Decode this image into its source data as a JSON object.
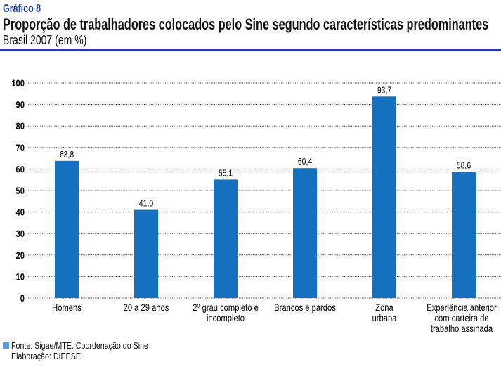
{
  "header": {
    "kicker": "Gráfico 8",
    "title": "Proporção de trabalhadores colocados pelo Sine segundo características predominantes",
    "subtitle": "Brasil 2007 (em %)"
  },
  "footer": {
    "source": "Fonte: Sigae/MTE. Coordenação do Sine",
    "elaboration": "Elaboração: DIEESE"
  },
  "colors": {
    "bar": "#1570c0",
    "accent": "#1f3f9a",
    "legend": "#5b9bd5"
  },
  "chart_data": {
    "type": "bar",
    "title": "Proporção de trabalhadores colocados pelo Sine segundo características predominantes",
    "xlabel": "",
    "ylabel": "",
    "ylim": [
      0,
      100
    ],
    "yticks": [
      "0",
      "10",
      "20",
      "30",
      "40",
      "50",
      "60",
      "70",
      "80",
      "90",
      "100"
    ],
    "grid": true,
    "categories": [
      [
        "Homens"
      ],
      [
        "20 a 29 anos"
      ],
      [
        "2º grau completo e",
        "incompleto"
      ],
      [
        "Brancos e pardos"
      ],
      [
        "Zona",
        "urbana"
      ],
      [
        "Experiência anterior",
        "com carteira de",
        "trabalho assinada"
      ]
    ],
    "values": [
      63.8,
      41.0,
      55.1,
      60.4,
      93.7,
      58.6
    ],
    "value_labels": [
      "63,8",
      "41,0",
      "55,1",
      "60,4",
      "93,7",
      "58,6"
    ]
  }
}
